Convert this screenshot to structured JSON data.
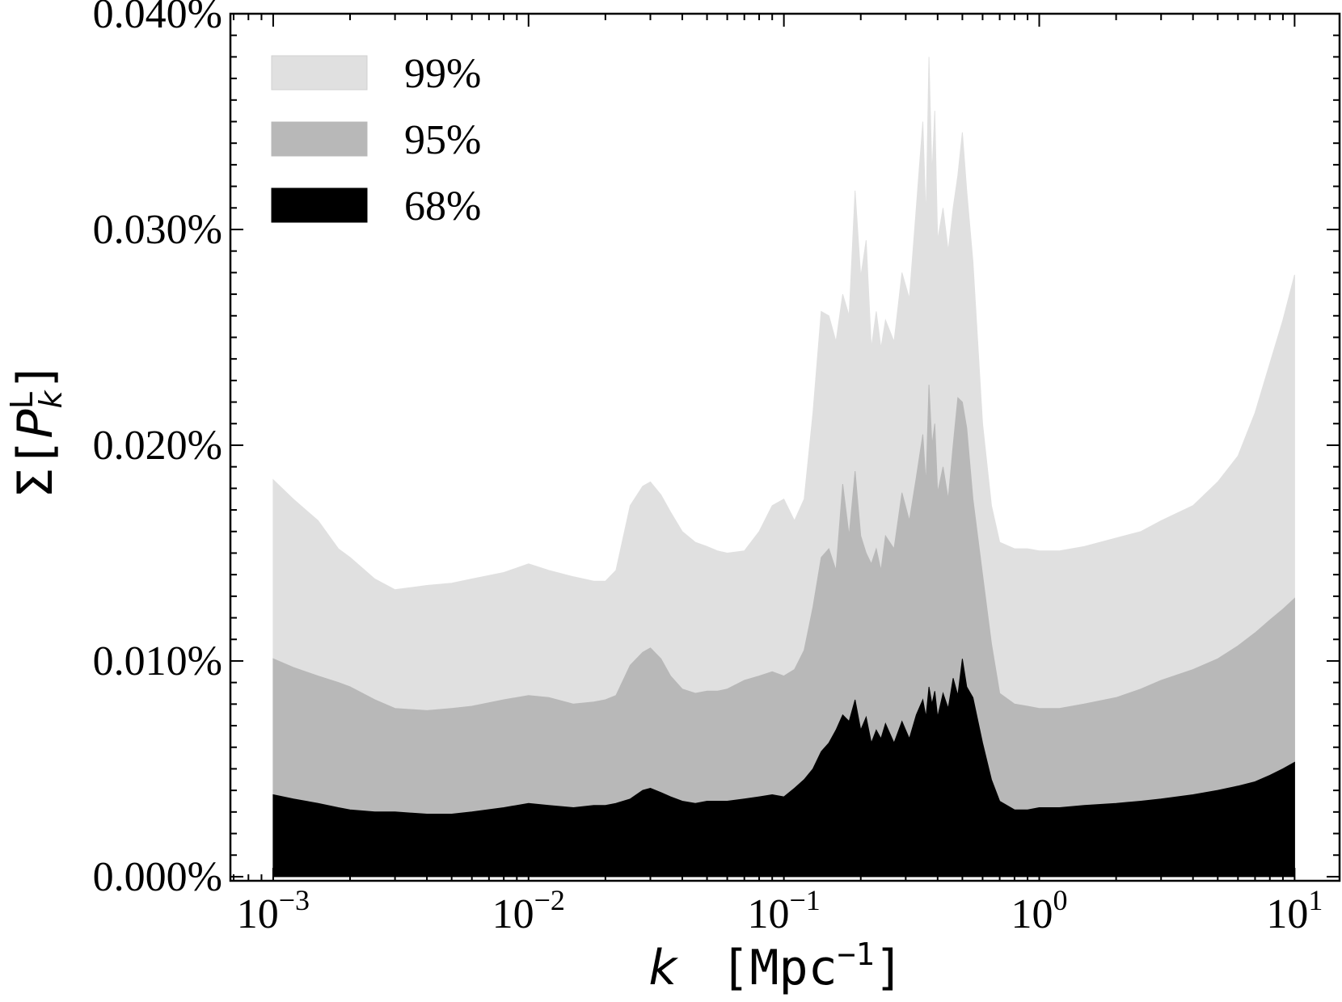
{
  "chart_data": {
    "type": "area",
    "xlabel": {
      "var": "k",
      "unit_base": "Mpc",
      "unit_exp": "−1"
    },
    "ylabel": {
      "sigma": "Σ",
      "var": "P",
      "sup": "L",
      "sub": "k"
    },
    "xscale": "log",
    "xlim": [
      0.00068,
      15
    ],
    "ylim": [
      -0.00019,
      0.04
    ],
    "xticks": [
      {
        "value": 0.001,
        "base": "10",
        "exp": "−3"
      },
      {
        "value": 0.01,
        "base": "10",
        "exp": "−2"
      },
      {
        "value": 0.1,
        "base": "10",
        "exp": "−1"
      },
      {
        "value": 1,
        "base": "10",
        "exp": "0"
      },
      {
        "value": 10,
        "base": "10",
        "exp": "1"
      }
    ],
    "yticks": [
      {
        "value": 0.0,
        "label": "0.000%"
      },
      {
        "value": 0.01,
        "label": "0.010%"
      },
      {
        "value": 0.02,
        "label": "0.020%"
      },
      {
        "value": 0.03,
        "label": "0.030%"
      },
      {
        "value": 0.04,
        "label": "0.040%"
      }
    ],
    "grid": false,
    "legend_position": "top-left",
    "series": [
      {
        "name": "99%",
        "color": "#e0e0e0",
        "x": [
          0.001,
          0.0012,
          0.0015,
          0.0018,
          0.002,
          0.0025,
          0.003,
          0.004,
          0.005,
          0.006,
          0.008,
          0.01,
          0.012,
          0.015,
          0.018,
          0.02,
          0.022,
          0.025,
          0.028,
          0.03,
          0.033,
          0.036,
          0.04,
          0.045,
          0.05,
          0.055,
          0.06,
          0.07,
          0.08,
          0.09,
          0.1,
          0.11,
          0.12,
          0.13,
          0.14,
          0.15,
          0.16,
          0.17,
          0.18,
          0.19,
          0.2,
          0.21,
          0.22,
          0.23,
          0.24,
          0.25,
          0.27,
          0.29,
          0.31,
          0.33,
          0.35,
          0.36,
          0.37,
          0.38,
          0.39,
          0.4,
          0.42,
          0.44,
          0.46,
          0.48,
          0.5,
          0.52,
          0.55,
          0.6,
          0.65,
          0.7,
          0.8,
          0.9,
          1.0,
          1.2,
          1.5,
          2.0,
          2.5,
          3.0,
          4.0,
          5.0,
          6.0,
          7.0,
          8.0,
          9.0,
          10.0
        ],
        "y": [
          0.0184,
          0.0175,
          0.0165,
          0.0152,
          0.0148,
          0.0138,
          0.0133,
          0.0135,
          0.0136,
          0.0138,
          0.0141,
          0.0145,
          0.0142,
          0.0139,
          0.0137,
          0.0137,
          0.0142,
          0.0172,
          0.0181,
          0.0183,
          0.0177,
          0.0169,
          0.016,
          0.0155,
          0.0153,
          0.0151,
          0.015,
          0.0151,
          0.016,
          0.0172,
          0.0175,
          0.0165,
          0.0175,
          0.0215,
          0.0262,
          0.026,
          0.0248,
          0.027,
          0.026,
          0.0318,
          0.0278,
          0.0295,
          0.0245,
          0.0262,
          0.0245,
          0.0258,
          0.0248,
          0.028,
          0.0268,
          0.031,
          0.035,
          0.0305,
          0.038,
          0.0325,
          0.0355,
          0.0295,
          0.031,
          0.029,
          0.031,
          0.0325,
          0.0345,
          0.0318,
          0.0285,
          0.021,
          0.0172,
          0.0155,
          0.0152,
          0.0152,
          0.0151,
          0.0151,
          0.0153,
          0.0157,
          0.016,
          0.0165,
          0.0172,
          0.0183,
          0.0195,
          0.0215,
          0.0238,
          0.0258,
          0.0279
        ]
      },
      {
        "name": "95%",
        "color": "#b8b8b8",
        "x": [
          0.001,
          0.0012,
          0.0015,
          0.0018,
          0.002,
          0.0025,
          0.003,
          0.004,
          0.005,
          0.006,
          0.008,
          0.01,
          0.012,
          0.015,
          0.018,
          0.02,
          0.022,
          0.025,
          0.028,
          0.03,
          0.033,
          0.036,
          0.04,
          0.045,
          0.05,
          0.055,
          0.06,
          0.07,
          0.08,
          0.09,
          0.1,
          0.11,
          0.12,
          0.13,
          0.14,
          0.15,
          0.16,
          0.17,
          0.18,
          0.19,
          0.2,
          0.21,
          0.22,
          0.23,
          0.24,
          0.25,
          0.27,
          0.29,
          0.31,
          0.33,
          0.35,
          0.36,
          0.37,
          0.38,
          0.39,
          0.4,
          0.42,
          0.44,
          0.46,
          0.48,
          0.5,
          0.52,
          0.55,
          0.6,
          0.65,
          0.7,
          0.8,
          0.9,
          1.0,
          1.2,
          1.5,
          2.0,
          2.5,
          3.0,
          4.0,
          5.0,
          6.0,
          7.0,
          8.0,
          9.0,
          10.0
        ],
        "y": [
          0.0101,
          0.0097,
          0.0093,
          0.009,
          0.0088,
          0.0082,
          0.0078,
          0.0077,
          0.0078,
          0.0079,
          0.0082,
          0.0084,
          0.0083,
          0.008,
          0.0081,
          0.0082,
          0.0084,
          0.0098,
          0.0104,
          0.0106,
          0.0101,
          0.0093,
          0.0087,
          0.0085,
          0.0086,
          0.0086,
          0.0087,
          0.0091,
          0.0093,
          0.0095,
          0.0093,
          0.0096,
          0.0105,
          0.0125,
          0.0148,
          0.0152,
          0.0142,
          0.0182,
          0.0158,
          0.0188,
          0.0158,
          0.015,
          0.0145,
          0.0152,
          0.0142,
          0.0158,
          0.0152,
          0.0178,
          0.0165,
          0.0185,
          0.0205,
          0.0182,
          0.0228,
          0.02,
          0.021,
          0.0178,
          0.019,
          0.0175,
          0.02,
          0.0222,
          0.022,
          0.0208,
          0.0175,
          0.014,
          0.0108,
          0.0085,
          0.008,
          0.0079,
          0.0078,
          0.0078,
          0.008,
          0.0083,
          0.0087,
          0.0091,
          0.0096,
          0.0101,
          0.0107,
          0.0113,
          0.0119,
          0.0124,
          0.0129
        ]
      },
      {
        "name": "68%",
        "color": "#000000",
        "x": [
          0.001,
          0.0012,
          0.0015,
          0.0018,
          0.002,
          0.0025,
          0.003,
          0.004,
          0.005,
          0.006,
          0.008,
          0.01,
          0.012,
          0.015,
          0.018,
          0.02,
          0.022,
          0.025,
          0.028,
          0.03,
          0.033,
          0.036,
          0.04,
          0.045,
          0.05,
          0.055,
          0.06,
          0.07,
          0.08,
          0.09,
          0.1,
          0.11,
          0.12,
          0.13,
          0.14,
          0.15,
          0.16,
          0.17,
          0.18,
          0.19,
          0.2,
          0.21,
          0.22,
          0.23,
          0.24,
          0.25,
          0.27,
          0.29,
          0.31,
          0.33,
          0.35,
          0.36,
          0.37,
          0.38,
          0.39,
          0.4,
          0.42,
          0.44,
          0.46,
          0.48,
          0.5,
          0.52,
          0.55,
          0.6,
          0.65,
          0.7,
          0.8,
          0.9,
          1.0,
          1.2,
          1.5,
          2.0,
          2.5,
          3.0,
          4.0,
          5.0,
          6.0,
          7.0,
          8.0,
          9.0,
          10.0
        ],
        "y": [
          0.0038,
          0.0036,
          0.0034,
          0.0032,
          0.0031,
          0.003,
          0.003,
          0.0029,
          0.0029,
          0.003,
          0.0032,
          0.0034,
          0.0033,
          0.0032,
          0.0033,
          0.0033,
          0.0034,
          0.0036,
          0.004,
          0.0041,
          0.0039,
          0.0037,
          0.0035,
          0.0034,
          0.0035,
          0.0035,
          0.0035,
          0.0036,
          0.0037,
          0.0038,
          0.0037,
          0.0041,
          0.0045,
          0.005,
          0.0058,
          0.0062,
          0.0068,
          0.0075,
          0.0072,
          0.0082,
          0.0068,
          0.0074,
          0.0062,
          0.0068,
          0.0064,
          0.0071,
          0.0062,
          0.0072,
          0.0064,
          0.0075,
          0.0082,
          0.0074,
          0.0088,
          0.008,
          0.0086,
          0.0074,
          0.0085,
          0.0078,
          0.0092,
          0.0084,
          0.0101,
          0.0088,
          0.0083,
          0.0062,
          0.0045,
          0.0035,
          0.0031,
          0.0031,
          0.0032,
          0.0032,
          0.0033,
          0.0034,
          0.0035,
          0.0036,
          0.0038,
          0.004,
          0.0042,
          0.0044,
          0.0047,
          0.005,
          0.0053
        ]
      }
    ]
  }
}
